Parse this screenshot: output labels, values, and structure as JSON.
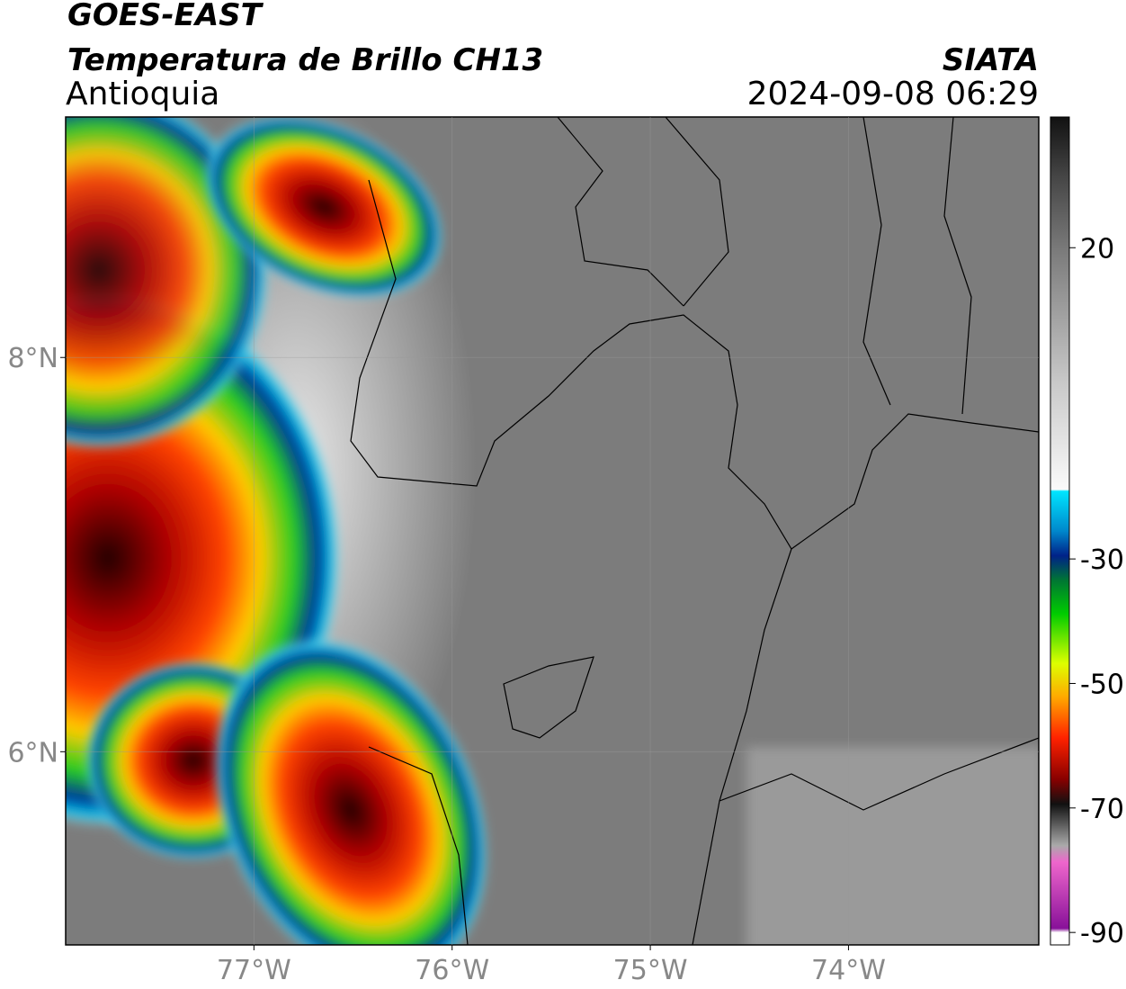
{
  "header": {
    "satellite": "GOES-EAST",
    "product": "Temperatura de Brillo CH13",
    "region": "Antioquia",
    "source": "SIATA",
    "datetime": "2024-09-08 06:29"
  },
  "map": {
    "xlim": [
      -77.95,
      -73.04
    ],
    "ylim": [
      5.02,
      9.22
    ],
    "xticks": [
      {
        "value": -77,
        "label": "77°W"
      },
      {
        "value": -76,
        "label": "76°W"
      },
      {
        "value": -75,
        "label": "75°W"
      },
      {
        "value": -74,
        "label": "74°W"
      }
    ],
    "yticks": [
      {
        "value": 8,
        "label": "8°N"
      },
      {
        "value": 6,
        "label": "6°N"
      }
    ]
  },
  "colorbar": {
    "lim": [
      -92,
      41
    ],
    "ticks": [
      20,
      -30,
      -50,
      -70,
      -90
    ]
  }
}
